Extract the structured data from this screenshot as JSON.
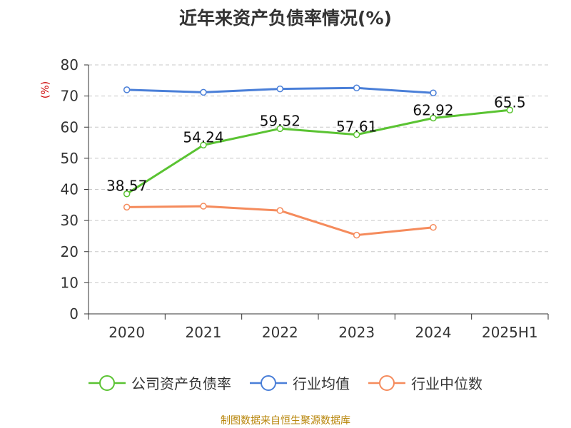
{
  "chart_data": {
    "type": "line",
    "title": "近年来资产负债率情况(%)",
    "ylabel": "(%)",
    "xlabel": "",
    "categories": [
      "2020",
      "2021",
      "2022",
      "2023",
      "2024",
      "2025H1"
    ],
    "ylim": [
      0,
      80
    ],
    "yticks": [
      0,
      10,
      20,
      30,
      40,
      50,
      60,
      70,
      80
    ],
    "grid": true,
    "legend_position": "bottom",
    "series": [
      {
        "name": "公司资产负债率",
        "color": "#5ac332",
        "show_labels": true,
        "values": [
          38.57,
          54.24,
          59.52,
          57.61,
          62.92,
          65.5
        ]
      },
      {
        "name": "行业均值",
        "color": "#4a7fd8",
        "show_labels": false,
        "values": [
          72.0,
          71.2,
          72.3,
          72.6,
          71.0,
          null
        ]
      },
      {
        "name": "行业中位数",
        "color": "#f58b5c",
        "show_labels": false,
        "values": [
          34.3,
          34.6,
          33.2,
          25.3,
          27.8,
          null
        ]
      }
    ]
  },
  "footer": {
    "source": "制图数据来自恒生聚源数据库"
  }
}
